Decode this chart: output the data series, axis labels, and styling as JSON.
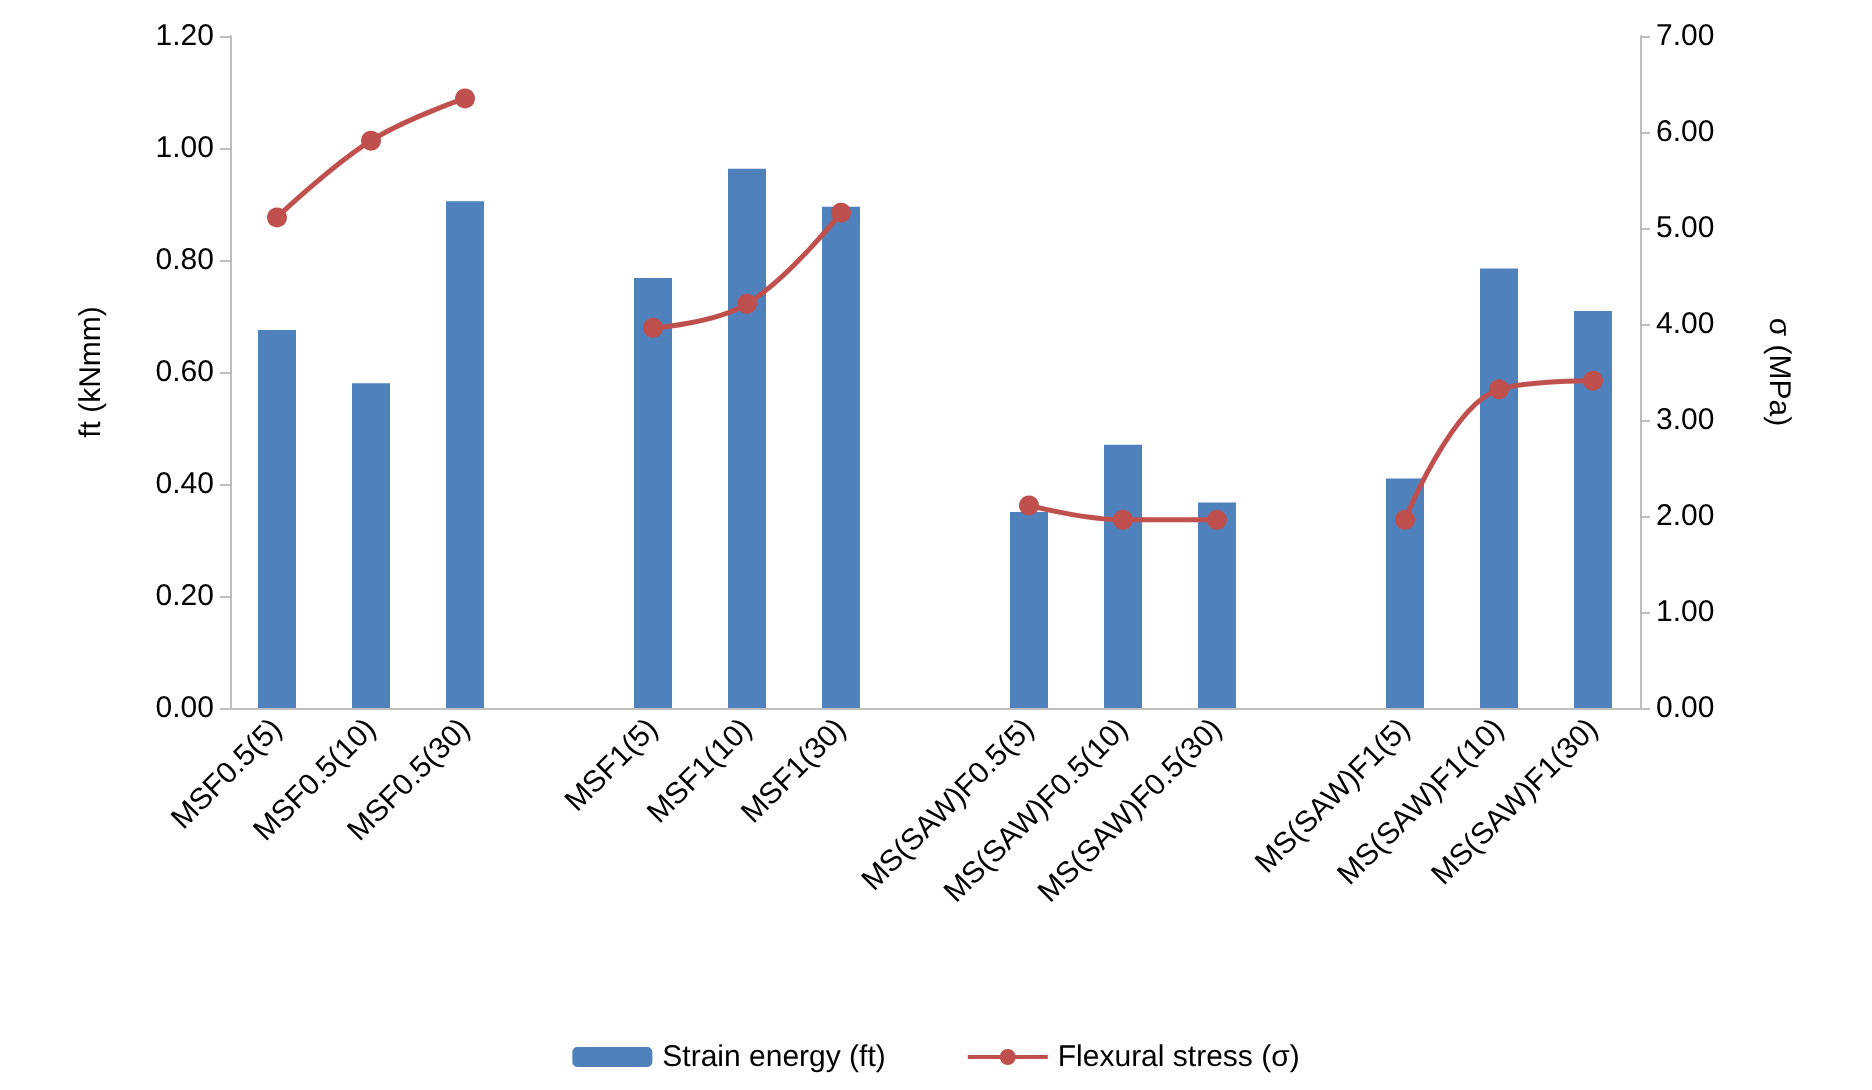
{
  "chart_data": {
    "type": "bar",
    "categories": [
      "MSF0.5(5)",
      "MSF0.5(10)",
      "MSF0.5(30)",
      null,
      "MSF1(5)",
      "MSF1(10)",
      "MSF1(30)",
      null,
      "MS(SAW)F0.5(5)",
      "MS(SAW)F0.5(10)",
      "MS(SAW)F0.5(30)",
      null,
      "MS(SAW)F1(5)",
      "MS(SAW)F1(10)",
      "MS(SAW)F1(30)"
    ],
    "series": [
      {
        "name": "Strain energy (ft)",
        "color": "#4f81bd",
        "values": [
          0.675,
          0.58,
          0.905,
          null,
          0.768,
          0.963,
          0.895,
          null,
          0.35,
          0.47,
          0.367,
          null,
          0.41,
          0.785,
          0.709
        ]
      },
      {
        "name": "Flexural stress (σ)",
        "type": "line",
        "axis": "y2",
        "color": "#c0504d",
        "marker": "circle",
        "values": [
          5.11,
          5.91,
          6.35,
          null,
          3.96,
          4.21,
          5.16,
          null,
          2.11,
          1.96,
          1.96,
          null,
          1.96,
          3.32,
          3.41
        ]
      }
    ],
    "ylabel": "ft (kNmm)",
    "y2label": "σ (MPa)",
    "ylim": [
      0,
      1.2
    ],
    "yticks": [
      {
        "value": 0,
        "label": "0.00"
      },
      {
        "value": 0.2,
        "label": "0.20"
      },
      {
        "value": 0.4,
        "label": "0.40"
      },
      {
        "value": 0.6,
        "label": "0.60"
      },
      {
        "value": 0.8,
        "label": "0.80"
      },
      {
        "value": 1,
        "label": "1.00"
      },
      {
        "value": 1.2,
        "label": "1.20"
      }
    ],
    "y2lim": [
      0,
      7
    ],
    "y2ticks": [
      {
        "value": 0,
        "label": "0.00"
      },
      {
        "value": 1,
        "label": "1.00"
      },
      {
        "value": 2,
        "label": "2.00"
      },
      {
        "value": 3,
        "label": "3.00"
      },
      {
        "value": 4,
        "label": "4.00"
      },
      {
        "value": 5,
        "label": "5.00"
      },
      {
        "value": 6,
        "label": "6.00"
      },
      {
        "value": 7,
        "label": "7.00"
      }
    ],
    "grid": false,
    "legend": "bottom"
  }
}
